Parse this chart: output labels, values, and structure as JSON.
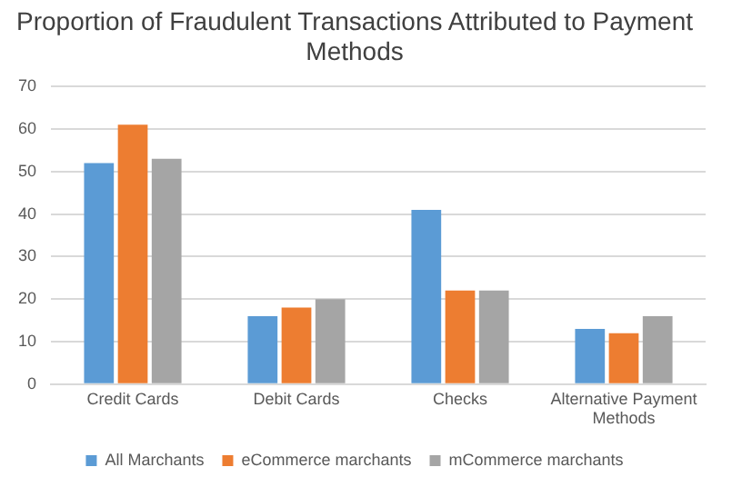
{
  "chart_data": {
    "type": "bar",
    "title": "Proportion of Fraudulent Transactions Attributed to Payment Methods",
    "categories": [
      "Credit Cards",
      "Debit Cards",
      "Checks",
      "Alternative Payment Methods"
    ],
    "series": [
      {
        "name": "All Marchants",
        "color": "#5b9bd5",
        "values": [
          52,
          16,
          41,
          13
        ]
      },
      {
        "name": "eCommerce marchants",
        "color": "#ed7d31",
        "values": [
          61,
          18,
          22,
          12
        ]
      },
      {
        "name": "mCommerce marchants",
        "color": "#a5a5a5",
        "values": [
          53,
          20,
          22,
          16
        ]
      }
    ],
    "ylim": [
      0,
      70
    ],
    "yticks": [
      0,
      10,
      20,
      30,
      40,
      50,
      60,
      70
    ],
    "grid": "y",
    "legend": "bottom"
  }
}
